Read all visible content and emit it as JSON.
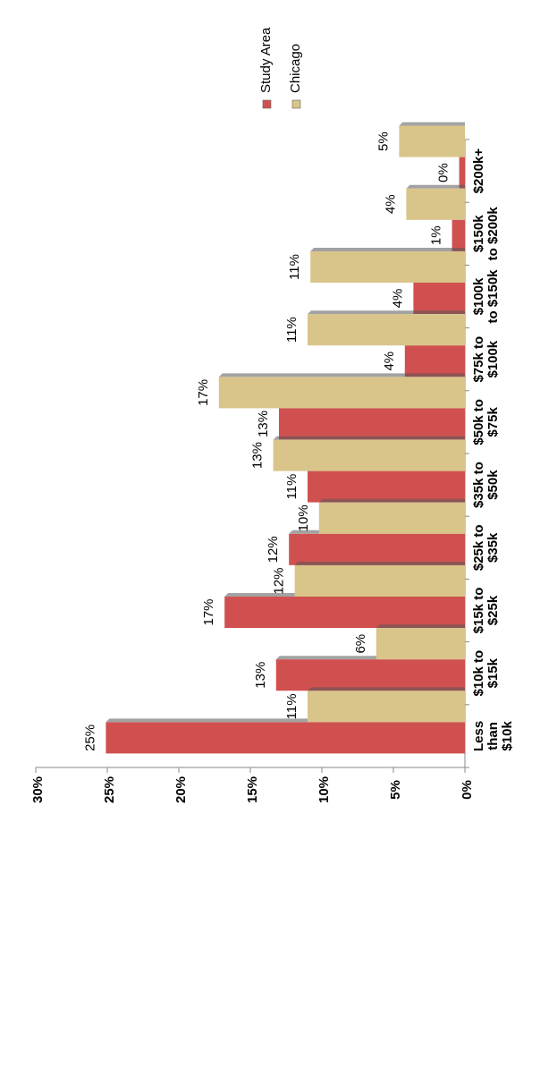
{
  "chart_data": {
    "type": "bar",
    "orientation": "rotated-90",
    "categories": [
      [
        "Less",
        "than",
        "$10k"
      ],
      [
        "$10k to",
        "$15k"
      ],
      [
        "$15k to",
        "$25k"
      ],
      [
        "$25k to",
        "$35k"
      ],
      [
        "$35k to",
        "$50k"
      ],
      [
        "$50k to",
        "$75k"
      ],
      [
        "$75k to",
        "$100k"
      ],
      [
        "$100k",
        "to $150k"
      ],
      [
        "$150k",
        "to $200k"
      ],
      [
        "$200k+"
      ]
    ],
    "series": [
      {
        "name": "Study Area",
        "color": "#d05050",
        "values": [
          25.1,
          13.2,
          16.8,
          12.3,
          11.0,
          13.0,
          4.2,
          3.6,
          0.9,
          0.4
        ],
        "labels": [
          "25%",
          "13%",
          "17%",
          "12%",
          "11%",
          "13%",
          "4%",
          "4%",
          "1%",
          "0%"
        ]
      },
      {
        "name": "Chicago",
        "color": "#d9c48a",
        "values": [
          11.0,
          6.2,
          11.9,
          10.2,
          13.4,
          17.2,
          11.0,
          10.8,
          4.1,
          4.6
        ],
        "labels": [
          "11%",
          "6%",
          "12%",
          "10%",
          "13%",
          "17%",
          "11%",
          "11%",
          "4%",
          "5%"
        ]
      }
    ],
    "value_axis": {
      "min": 0,
      "max": 30,
      "ticks": [
        0,
        5,
        10,
        15,
        20,
        25,
        30
      ],
      "tick_labels": [
        "0%",
        "5%",
        "10%",
        "15%",
        "20%",
        "25%",
        "30%"
      ]
    },
    "grid": false,
    "legend_position": "top-right"
  }
}
